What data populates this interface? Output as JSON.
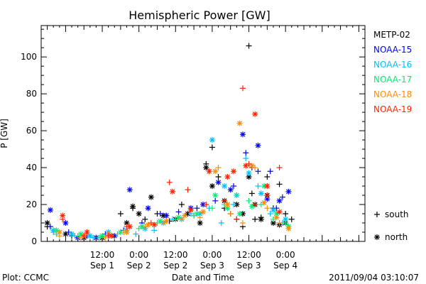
{
  "chart_data": {
    "type": "scatter",
    "title": "Hemispheric Power [GW]",
    "ylabel": "P [GW]",
    "xlabel": "Date and Time",
    "ylim": [
      0,
      117
    ],
    "yticks": [
      0,
      20,
      40,
      60,
      80,
      100
    ],
    "xlim_hours": [
      -8,
      98
    ],
    "xticks": [
      {
        "hour": 12,
        "label1": "12:00",
        "label2": "Sep 1"
      },
      {
        "hour": 24,
        "label1": "0:00",
        "label2": "Sep 2"
      },
      {
        "hour": 36,
        "label1": "12:00",
        "label2": "Sep 2"
      },
      {
        "hour": 48,
        "label1": "0:00",
        "label2": "Sep 3"
      },
      {
        "hour": 60,
        "label1": "12:00",
        "label2": "Sep 3"
      },
      {
        "hour": 72,
        "label1": "0:00",
        "label2": "Sep 4"
      }
    ],
    "grid": false,
    "legend_position": "right",
    "marker_legend": [
      {
        "symbol": "+",
        "label": "south"
      },
      {
        "symbol": "*",
        "label": "north"
      }
    ],
    "series": [
      {
        "name": "METP-02",
        "color": "#000000",
        "south": [
          [
            -6,
            8
          ],
          [
            2,
            3
          ],
          [
            10,
            2
          ],
          [
            14,
            3
          ],
          [
            18,
            15
          ],
          [
            22,
            18
          ],
          [
            26,
            12
          ],
          [
            30,
            15
          ],
          [
            34,
            11
          ],
          [
            38,
            20
          ],
          [
            42,
            14
          ],
          [
            46,
            42
          ],
          [
            48,
            51
          ],
          [
            50,
            35
          ],
          [
            52,
            18
          ],
          [
            54,
            15
          ],
          [
            56,
            12
          ],
          [
            58,
            8
          ],
          [
            60,
            106
          ],
          [
            61,
            26
          ],
          [
            62,
            12
          ],
          [
            64,
            13
          ],
          [
            66,
            35
          ],
          [
            68,
            18
          ],
          [
            70,
            31
          ],
          [
            72,
            15
          ],
          [
            74,
            12
          ]
        ],
        "north": [
          [
            -6,
            10
          ],
          [
            0,
            4
          ],
          [
            6,
            2
          ],
          [
            12,
            2
          ],
          [
            20,
            10
          ],
          [
            22,
            19
          ],
          [
            24,
            15
          ],
          [
            28,
            24
          ],
          [
            32,
            14
          ],
          [
            36,
            12
          ],
          [
            40,
            15
          ],
          [
            44,
            10
          ],
          [
            46,
            40
          ],
          [
            48,
            30
          ],
          [
            52,
            22
          ],
          [
            56,
            20
          ],
          [
            58,
            15
          ],
          [
            60,
            35
          ],
          [
            62,
            20
          ],
          [
            64,
            12
          ],
          [
            66,
            25
          ],
          [
            68,
            10
          ],
          [
            70,
            9
          ],
          [
            72,
            10
          ]
        ]
      },
      {
        "name": "NOAA-15",
        "color": "#0000ff",
        "south": [
          [
            -5,
            8
          ],
          [
            1,
            5
          ],
          [
            7,
            3
          ],
          [
            13,
            4
          ],
          [
            19,
            6
          ],
          [
            25,
            10
          ],
          [
            31,
            15
          ],
          [
            37,
            16
          ],
          [
            43,
            18
          ],
          [
            49,
            22
          ],
          [
            55,
            30
          ],
          [
            59,
            48
          ],
          [
            61,
            40
          ],
          [
            63,
            38
          ],
          [
            67,
            38
          ],
          [
            69,
            18
          ],
          [
            71,
            24
          ]
        ],
        "north": [
          [
            -5,
            17
          ],
          [
            0,
            10
          ],
          [
            4,
            2
          ],
          [
            10,
            2
          ],
          [
            16,
            3
          ],
          [
            21,
            28
          ],
          [
            27,
            18
          ],
          [
            33,
            14
          ],
          [
            41,
            18
          ],
          [
            45,
            20
          ],
          [
            50,
            32
          ],
          [
            54,
            28
          ],
          [
            58,
            58
          ],
          [
            63,
            52
          ],
          [
            66,
            23
          ],
          [
            70,
            22
          ],
          [
            73,
            27
          ]
        ]
      },
      {
        "name": "NOAA-16",
        "color": "#00bfff",
        "south": [
          [
            -4,
            5
          ],
          [
            3,
            3
          ],
          [
            9,
            2
          ],
          [
            15,
            3
          ],
          [
            23,
            4
          ],
          [
            29,
            6
          ],
          [
            35,
            12
          ],
          [
            41,
            15
          ],
          [
            47,
            18
          ],
          [
            51,
            10
          ],
          [
            55,
            20
          ],
          [
            59,
            45
          ],
          [
            63,
            30
          ],
          [
            67,
            15
          ],
          [
            71,
            10
          ]
        ],
        "north": [
          [
            -4,
            6
          ],
          [
            2,
            4
          ],
          [
            8,
            3
          ],
          [
            14,
            5
          ],
          [
            20,
            6
          ],
          [
            26,
            7
          ],
          [
            32,
            10
          ],
          [
            38,
            12
          ],
          [
            44,
            15
          ],
          [
            48,
            55
          ],
          [
            52,
            30
          ],
          [
            56,
            25
          ],
          [
            60,
            37
          ],
          [
            64,
            26
          ],
          [
            68,
            17
          ],
          [
            72,
            12
          ]
        ]
      },
      {
        "name": "NOAA-17",
        "color": "#00ee77",
        "south": [
          [
            -3,
            4
          ],
          [
            4,
            3
          ],
          [
            11,
            2
          ],
          [
            17,
            4
          ],
          [
            24,
            7
          ],
          [
            30,
            10
          ],
          [
            36,
            12
          ],
          [
            42,
            14
          ],
          [
            48,
            18
          ],
          [
            52,
            20
          ],
          [
            56,
            25
          ],
          [
            60,
            22
          ],
          [
            64,
            20
          ],
          [
            68,
            12
          ],
          [
            72,
            10
          ]
        ],
        "north": [
          [
            -3,
            6
          ],
          [
            5,
            4
          ],
          [
            12,
            3
          ],
          [
            18,
            5
          ],
          [
            25,
            8
          ],
          [
            31,
            11
          ],
          [
            37,
            13
          ],
          [
            43,
            15
          ],
          [
            49,
            25
          ],
          [
            53,
            18
          ],
          [
            57,
            15
          ],
          [
            61,
            19
          ],
          [
            65,
            30
          ],
          [
            69,
            15
          ],
          [
            73,
            8
          ]
        ]
      },
      {
        "name": "NOAA-18",
        "color": "#ff8c00",
        "south": [
          [
            -2,
            3
          ],
          [
            5,
            2
          ],
          [
            13,
            2
          ],
          [
            19,
            5
          ],
          [
            26,
            8
          ],
          [
            32,
            10
          ],
          [
            38,
            12
          ],
          [
            44,
            13
          ],
          [
            50,
            40
          ],
          [
            54,
            15
          ],
          [
            58,
            10
          ],
          [
            62,
            40
          ],
          [
            66,
            18
          ],
          [
            70,
            10
          ]
        ],
        "north": [
          [
            -2,
            5
          ],
          [
            6,
            3
          ],
          [
            14,
            4
          ],
          [
            20,
            5
          ],
          [
            27,
            9
          ],
          [
            33,
            11
          ],
          [
            39,
            14
          ],
          [
            45,
            16
          ],
          [
            49,
            38
          ],
          [
            53,
            20
          ],
          [
            57,
            64
          ],
          [
            61,
            41
          ],
          [
            65,
            21
          ],
          [
            69,
            13
          ],
          [
            73,
            7
          ]
        ]
      },
      {
        "name": "NOAA-19",
        "color": "#ff2200",
        "south": [
          [
            -1,
            12
          ],
          [
            6,
            3
          ],
          [
            14,
            3
          ],
          [
            20,
            8
          ],
          [
            28,
            10
          ],
          [
            34,
            32
          ],
          [
            40,
            28
          ],
          [
            46,
            20
          ],
          [
            52,
            22
          ],
          [
            56,
            12
          ],
          [
            58,
            83
          ],
          [
            60,
            42
          ],
          [
            62,
            20
          ],
          [
            66,
            25
          ],
          [
            70,
            40
          ]
        ],
        "north": [
          [
            -1,
            14
          ],
          [
            7,
            5
          ],
          [
            15,
            3
          ],
          [
            21,
            8
          ],
          [
            29,
            9
          ],
          [
            35,
            27
          ],
          [
            41,
            17
          ],
          [
            47,
            38
          ],
          [
            53,
            35
          ],
          [
            55,
            38
          ],
          [
            59,
            41
          ],
          [
            62,
            69
          ],
          [
            66,
            30
          ],
          [
            70,
            16
          ]
        ]
      }
    ],
    "footer": {
      "left": "Plot: CCMC",
      "right": "2011/09/04 03:10:07"
    }
  }
}
